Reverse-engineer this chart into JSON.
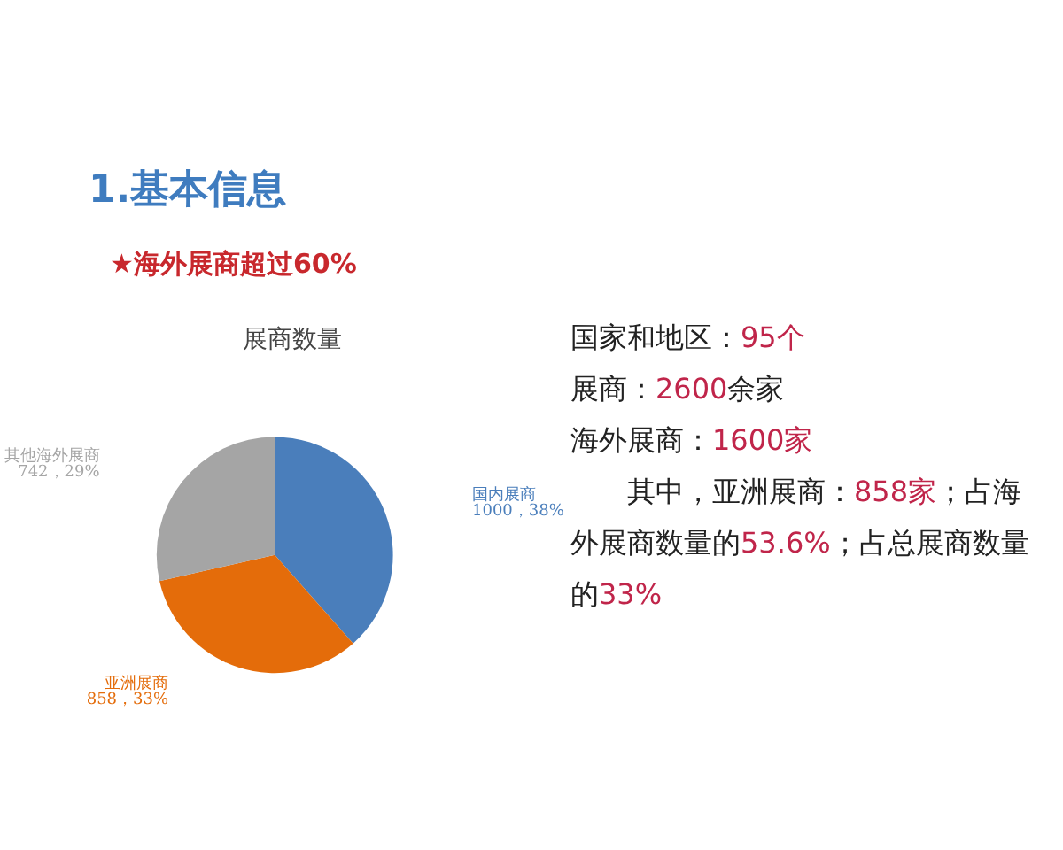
{
  "chart_data": {
    "type": "pie",
    "title": "展商数量",
    "categories": [
      "国内展商",
      "亚洲展商",
      "其他海外展商"
    ],
    "values": [
      1000,
      858,
      742
    ],
    "colors": [
      "#4a7ebb",
      "#e46c0a",
      "#a5a5a5"
    ],
    "value_labels": [
      "1000，38%",
      "858，33%",
      "742，29%"
    ],
    "legend": false,
    "annotations": [
      "1.基本信息",
      "★海外展商超过60%",
      "国家和地区：95个",
      "展商：2600余家",
      "海外展商：1600家",
      "其中，亚洲展商：858家；占海外展商数量的53.6%；占总展商数量的33%"
    ]
  }
}
